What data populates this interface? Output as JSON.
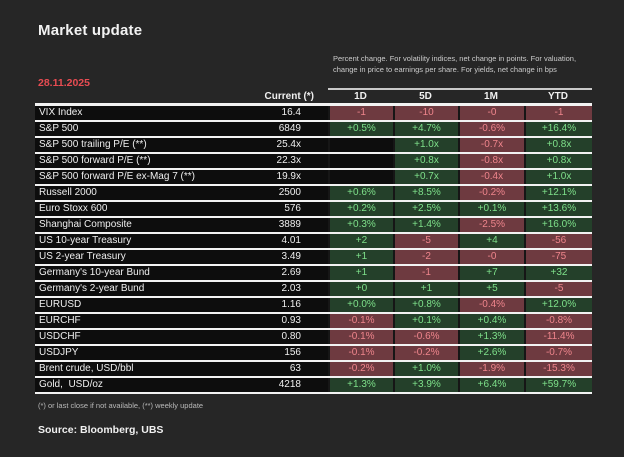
{
  "page": {
    "title": "Market update",
    "date": "28.11.2025",
    "note": "Percent change. For volatility indices, net change in points. For valuation, change in price to earnings per share. For yields,  net change in bps",
    "footnote": "(*) or last close if not available, (**) weekly update",
    "source": "Source: Bloomberg, UBS"
  },
  "colors": {
    "background": "#262626",
    "row_background": "#0d0d0d",
    "separator": "#f2f2f2",
    "positive_bg": "#24402a",
    "positive_text": "#7ee08a",
    "negative_bg": "#6e3a40",
    "negative_text": "#ef858c",
    "date_red": "#e84c52"
  },
  "chart_data": {
    "type": "table",
    "title": "Market update",
    "date": "28.11.2025",
    "columns": [
      "Current (*)",
      "1D",
      "5D",
      "1M",
      "YTD"
    ],
    "rows": [
      {
        "label": "VIX Index",
        "current": "16.4",
        "changes": [
          {
            "value": "-1",
            "direction": "negative"
          },
          {
            "value": "-10",
            "direction": "negative"
          },
          {
            "value": "-0",
            "direction": "negative"
          },
          {
            "value": "-1",
            "direction": "negative"
          }
        ]
      },
      {
        "label": "S&P 500",
        "current": "6849",
        "changes": [
          {
            "value": "+0.5%",
            "direction": "positive"
          },
          {
            "value": "+4.7%",
            "direction": "positive"
          },
          {
            "value": "-0.6%",
            "direction": "negative"
          },
          {
            "value": "+16.4%",
            "direction": "positive"
          }
        ]
      },
      {
        "label": "S&P 500 trailing P/E (**)",
        "current": "25.4x",
        "changes": [
          {
            "value": "",
            "direction": "none"
          },
          {
            "value": "+1.0x",
            "direction": "positive"
          },
          {
            "value": "-0.7x",
            "direction": "negative"
          },
          {
            "value": "+0.8x",
            "direction": "positive"
          }
        ]
      },
      {
        "label": "S&P 500 forward P/E (**)",
        "current": "22.3x",
        "changes": [
          {
            "value": "",
            "direction": "none"
          },
          {
            "value": "+0.8x",
            "direction": "positive"
          },
          {
            "value": "-0.8x",
            "direction": "negative"
          },
          {
            "value": "+0.8x",
            "direction": "positive"
          }
        ]
      },
      {
        "label": "S&P 500 forward P/E ex-Mag 7 (**)",
        "current": "19.9x",
        "changes": [
          {
            "value": "",
            "direction": "none"
          },
          {
            "value": "+0.7x",
            "direction": "positive"
          },
          {
            "value": "-0.4x",
            "direction": "negative"
          },
          {
            "value": "+1.0x",
            "direction": "positive"
          }
        ]
      },
      {
        "label": "Russell 2000",
        "current": "2500",
        "changes": [
          {
            "value": "+0.6%",
            "direction": "positive"
          },
          {
            "value": "+8.5%",
            "direction": "positive"
          },
          {
            "value": "-0.2%",
            "direction": "negative"
          },
          {
            "value": "+12.1%",
            "direction": "positive"
          }
        ]
      },
      {
        "label": "Euro Stoxx 600",
        "current": "576",
        "changes": [
          {
            "value": "+0.2%",
            "direction": "positive"
          },
          {
            "value": "+2.5%",
            "direction": "positive"
          },
          {
            "value": "+0.1%",
            "direction": "positive"
          },
          {
            "value": "+13.6%",
            "direction": "positive"
          }
        ]
      },
      {
        "label": "Shanghai Composite",
        "current": "3889",
        "changes": [
          {
            "value": "+0.3%",
            "direction": "positive"
          },
          {
            "value": "+1.4%",
            "direction": "positive"
          },
          {
            "value": "-2.5%",
            "direction": "negative"
          },
          {
            "value": "+16.0%",
            "direction": "positive"
          }
        ]
      },
      {
        "label": "US 10-year Treasury",
        "current": "4.01",
        "changes": [
          {
            "value": "+2",
            "direction": "positive"
          },
          {
            "value": "-5",
            "direction": "negative"
          },
          {
            "value": "+4",
            "direction": "positive"
          },
          {
            "value": "-56",
            "direction": "negative"
          }
        ]
      },
      {
        "label": "US 2-year Treasury",
        "current": "3.49",
        "changes": [
          {
            "value": "+1",
            "direction": "positive"
          },
          {
            "value": "-2",
            "direction": "negative"
          },
          {
            "value": "-0",
            "direction": "negative"
          },
          {
            "value": "-75",
            "direction": "negative"
          }
        ]
      },
      {
        "label": "Germany's 10-year Bund",
        "current": "2.69",
        "changes": [
          {
            "value": "+1",
            "direction": "positive"
          },
          {
            "value": "-1",
            "direction": "negative"
          },
          {
            "value": "+7",
            "direction": "positive"
          },
          {
            "value": "+32",
            "direction": "positive"
          }
        ]
      },
      {
        "label": "Germany's 2-year Bund",
        "current": "2.03",
        "changes": [
          {
            "value": "+0",
            "direction": "positive"
          },
          {
            "value": "+1",
            "direction": "positive"
          },
          {
            "value": "+5",
            "direction": "positive"
          },
          {
            "value": "-5",
            "direction": "negative"
          }
        ]
      },
      {
        "label": "EURUSD",
        "current": "1.16",
        "changes": [
          {
            "value": "+0.0%",
            "direction": "positive"
          },
          {
            "value": "+0.8%",
            "direction": "positive"
          },
          {
            "value": "-0.4%",
            "direction": "negative"
          },
          {
            "value": "+12.0%",
            "direction": "positive"
          }
        ]
      },
      {
        "label": "EURCHF",
        "current": "0.93",
        "changes": [
          {
            "value": "-0.1%",
            "direction": "negative"
          },
          {
            "value": "+0.1%",
            "direction": "positive"
          },
          {
            "value": "+0.4%",
            "direction": "positive"
          },
          {
            "value": "-0.8%",
            "direction": "negative"
          }
        ]
      },
      {
        "label": "USDCHF",
        "current": "0.80",
        "changes": [
          {
            "value": "-0.1%",
            "direction": "negative"
          },
          {
            "value": "-0.6%",
            "direction": "negative"
          },
          {
            "value": "+1.3%",
            "direction": "positive"
          },
          {
            "value": "-11.4%",
            "direction": "negative"
          }
        ]
      },
      {
        "label": "USDJPY",
        "current": "156",
        "changes": [
          {
            "value": "-0.1%",
            "direction": "negative"
          },
          {
            "value": "-0.2%",
            "direction": "negative"
          },
          {
            "value": "+2.6%",
            "direction": "positive"
          },
          {
            "value": "-0.7%",
            "direction": "negative"
          }
        ]
      },
      {
        "label": "Brent crude, USD/bbl",
        "current": "63",
        "changes": [
          {
            "value": "-0.2%",
            "direction": "negative"
          },
          {
            "value": "+1.0%",
            "direction": "positive"
          },
          {
            "value": "-1.9%",
            "direction": "negative"
          },
          {
            "value": "-15.3%",
            "direction": "negative"
          }
        ]
      },
      {
        "label": "Gold,  USD/oz",
        "current": "4218",
        "changes": [
          {
            "value": "+1.3%",
            "direction": "positive"
          },
          {
            "value": "+3.9%",
            "direction": "positive"
          },
          {
            "value": "+6.4%",
            "direction": "positive"
          },
          {
            "value": "+59.7%",
            "direction": "positive"
          }
        ]
      }
    ]
  }
}
